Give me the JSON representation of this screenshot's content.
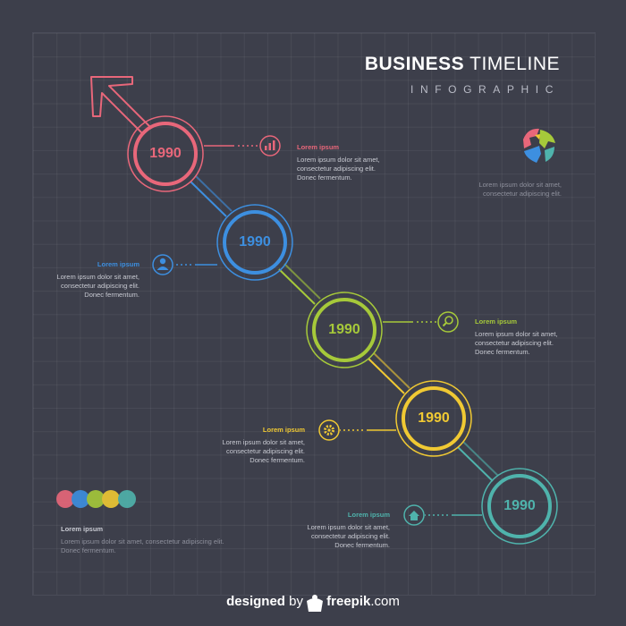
{
  "header": {
    "title_bold": "BUSINESS",
    "title_light": "TIMELINE",
    "subtitle": "INFOGRAPHIC"
  },
  "colors": {
    "background": "#3d3f4b",
    "red": "#e8677a",
    "blue": "#3d8fe0",
    "green": "#a6c93a",
    "yellow": "#f0c933",
    "teal": "#4fb3ac"
  },
  "milestones": [
    {
      "year": "1990",
      "color": "#e8677a",
      "icon": "bar-chart-icon",
      "heading": "Lorem ipsum",
      "text": "Lorem ipsum dolor sit amet,\nconsectetur adipiscing elit.\nDonec fermentum."
    },
    {
      "year": "1990",
      "color": "#3d8fe0",
      "icon": "user-icon",
      "heading": "Lorem ipsum",
      "text": "Lorem ipsum dolor sit amet,\nconsectetur adipiscing elit.\nDonec fermentum."
    },
    {
      "year": "1990",
      "color": "#a6c93a",
      "icon": "search-icon",
      "heading": "Lorem ipsum",
      "text": "Lorem ipsum dolor sit amet,\nconsectetur adipiscing elit.\nDonec fermentum."
    },
    {
      "year": "1990",
      "color": "#f0c933",
      "icon": "gear-icon",
      "heading": "Lorem ipsum",
      "text": "Lorem ipsum dolor sit amet,\nconsectetur adipiscing elit.\nDonec fermentum."
    },
    {
      "year": "1990",
      "color": "#4fb3ac",
      "icon": "home-icon",
      "heading": "Lorem ipsum",
      "text": "Lorem ipsum dolor sit amet,\nconsectetur adipiscing elit.\nDonec fermentum."
    }
  ],
  "globe_note": {
    "icon": "globe-icon",
    "text": "Lorem ipsum dolor sit amet,\nconsectetur adipiscing elit."
  },
  "legend_note": {
    "heading": "Lorem ipsum",
    "text": "Lorem ipsum dolor sit amet, consectetur adipiscing elit.\nDonec fermentum."
  },
  "footer": {
    "designed": "designed",
    "by": "by",
    "brand": "freepik",
    "domain": ".com"
  }
}
